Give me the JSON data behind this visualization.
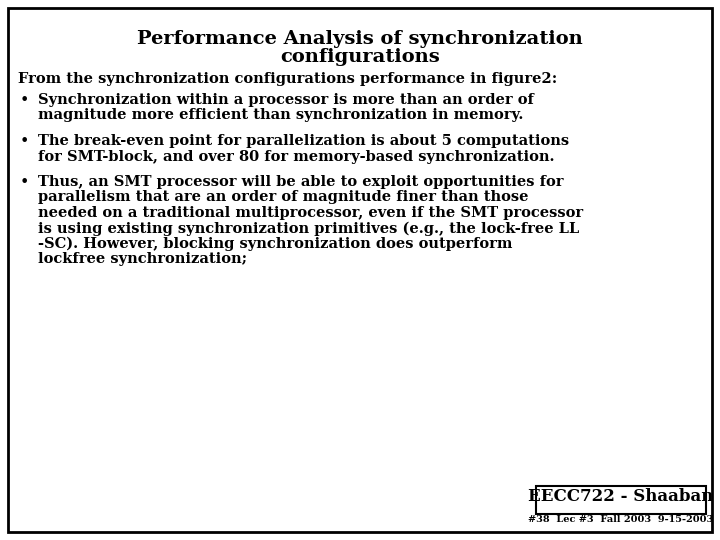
{
  "title_line1": "Performance Analysis of synchronization",
  "title_line2": "configurations",
  "intro_text": "From the synchronization configurations performance in figure2:",
  "bullet1_line1": "Synchronization within a processor is more than an order of",
  "bullet1_line2": "magnitude more efficient than synchronization in memory.",
  "bullet2_line1": "The break-even point for parallelization is about 5 computations",
  "bullet2_line2": "for SMT-block, and over 80 for memory-based synchronization.",
  "bullet3_line1": "Thus, an SMT processor will be able to exploit opportunities for",
  "bullet3_line2": "parallelism that are an order of magnitude finer than those",
  "bullet3_line3": "needed on a traditional multiprocessor, even if the SMT processor",
  "bullet3_line4": "is using existing synchronization primitives (e.g., the lock-free LL",
  "bullet3_line5": "-SC). However, blocking synchronization does outperform",
  "bullet3_line6": "lockfree synchronization;",
  "footer_label": "EECC722 - Shaaban",
  "footer_sub": "#38  Lec #3  Fall 2003  9-15-2003",
  "bg_color": "#ffffff",
  "border_color": "#000000",
  "text_color": "#000000",
  "title_fontsize": 14,
  "body_fontsize": 10.5,
  "footer_fontsize": 12,
  "footer_sub_fontsize": 7
}
